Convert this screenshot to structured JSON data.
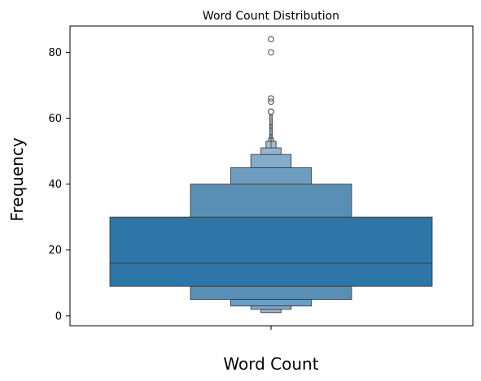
{
  "chart_data": {
    "type": "boxenplot",
    "title": "Word Count Distribution",
    "xlabel": "Word Count",
    "ylabel": "Frequency",
    "ylim": [
      -3,
      88
    ],
    "yticks": [
      0,
      20,
      40,
      60,
      80
    ],
    "grid": false,
    "legend": "none",
    "median": 16,
    "boxes": [
      {
        "level": 0,
        "low": 9,
        "high": 30,
        "color": "#2e75a8"
      },
      {
        "level": 1,
        "low": 5,
        "high": 40,
        "color": "#5a8fb5"
      },
      {
        "level": 2,
        "low": 3,
        "high": 45,
        "color": "#6f9dc0"
      },
      {
        "level": 3,
        "low": 2,
        "high": 49,
        "color": "#84accb"
      },
      {
        "level": 4,
        "low": 1,
        "high": 51,
        "color": "#92b6d2"
      },
      {
        "level": 5,
        "low": 1,
        "high": 53,
        "color": "#9dbed6"
      },
      {
        "level": 6,
        "low": 1,
        "high": 54,
        "color": "#a8c4da"
      },
      {
        "level": 7,
        "low": 1,
        "high": 55,
        "color": "#b2cbde"
      },
      {
        "level": 8,
        "low": 1,
        "high": 57,
        "color": "#bcd1e2"
      },
      {
        "level": 9,
        "low": 1,
        "high": 58,
        "color": "#c6d8e6"
      },
      {
        "level": 10,
        "low": 1,
        "high": 61,
        "color": "#d0dfeb"
      }
    ],
    "outliers": [
      62,
      62,
      65,
      66,
      80,
      84
    ],
    "colors": {
      "line": "#3d3d3d",
      "outlier": "#6b6b6b"
    }
  }
}
